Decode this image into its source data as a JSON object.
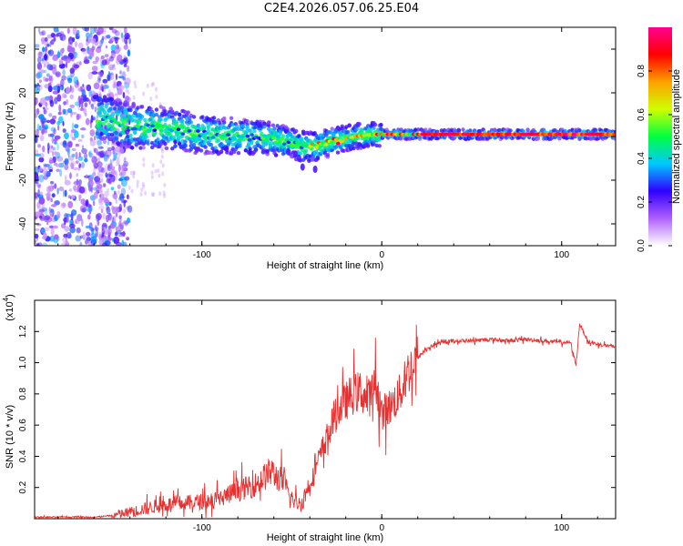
{
  "title": "C2E4.2026.057.06.25.E04",
  "chart_data": [
    {
      "type": "heatmap",
      "name": "spectrogram",
      "xlabel": "Height of straight line (km)",
      "ylabel": "Frequency (Hz)",
      "xlim": [
        -193,
        130
      ],
      "ylim": [
        -50,
        50
      ],
      "xticks": [
        -100,
        0,
        100
      ],
      "xtick_labels": [
        "-100",
        "0",
        "100"
      ],
      "yticks": [
        -40,
        -20,
        0,
        20,
        40
      ],
      "ytick_labels": [
        "-40",
        "-20",
        "0",
        "20",
        "40"
      ],
      "ridge": {
        "x": [
          -155,
          -140,
          -120,
          -100,
          -80,
          -60,
          -50,
          -42,
          -35,
          -25,
          -15,
          -5,
          5,
          20,
          40,
          60,
          80,
          100,
          130
        ],
        "y": [
          8,
          5,
          4,
          1,
          0,
          -1,
          -3,
          -5,
          -4,
          -2,
          0,
          1,
          1,
          1,
          1,
          1,
          1,
          1,
          1
        ]
      },
      "colorbar": {
        "label": "Normalized spectral amplitude",
        "range": [
          0,
          1
        ],
        "ticks": [
          0.0,
          0.2,
          0.4,
          0.6,
          0.8
        ],
        "tick_labels": [
          "0.0",
          "0.2",
          "0.4",
          "0.6",
          "0.8"
        ],
        "colors": [
          "#ffffff",
          "#b060ff",
          "#3000ff",
          "#00c8ff",
          "#00ff40",
          "#d0ff00",
          "#ffa000",
          "#ff0000",
          "#ff0090"
        ]
      }
    },
    {
      "type": "line",
      "name": "snr",
      "xlabel": "Height of straight line (km)",
      "ylabel": "SNR (10 * v/v)",
      "scale_label_base": "(x10",
      "scale_label_exp": "4",
      "scale_label_end": ")",
      "xlim": [
        -193,
        130
      ],
      "ylim": [
        0,
        1.4
      ],
      "xticks": [
        -100,
        0,
        100
      ],
      "xtick_labels": [
        "-100",
        "0",
        "100"
      ],
      "yticks": [
        0.2,
        0.4,
        0.6,
        0.8,
        1.0,
        1.2
      ],
      "ytick_labels": [
        "0.2",
        "0.4",
        "0.6",
        "0.8",
        "1.0",
        "1.2"
      ],
      "color": "#e83030",
      "x": [
        -193,
        -180,
        -160,
        -150,
        -140,
        -130,
        -120,
        -110,
        -100,
        -90,
        -80,
        -70,
        -62,
        -55,
        -50,
        -45,
        -38,
        -32,
        -25,
        -18,
        -12,
        -8,
        -3,
        0,
        5,
        10,
        15,
        20,
        25,
        30,
        40,
        50,
        60,
        70,
        80,
        90,
        100,
        105,
        108,
        110,
        115,
        120,
        130
      ],
      "y": [
        0.01,
        0.01,
        0.01,
        0.02,
        0.04,
        0.07,
        0.09,
        0.1,
        0.11,
        0.13,
        0.18,
        0.22,
        0.3,
        0.24,
        0.12,
        0.09,
        0.28,
        0.48,
        0.68,
        0.78,
        0.82,
        0.76,
        0.86,
        0.68,
        0.72,
        0.8,
        0.95,
        1.03,
        1.09,
        1.12,
        1.14,
        1.14,
        1.15,
        1.14,
        1.15,
        1.14,
        1.13,
        1.13,
        0.98,
        1.25,
        1.13,
        1.12,
        1.1
      ]
    }
  ]
}
